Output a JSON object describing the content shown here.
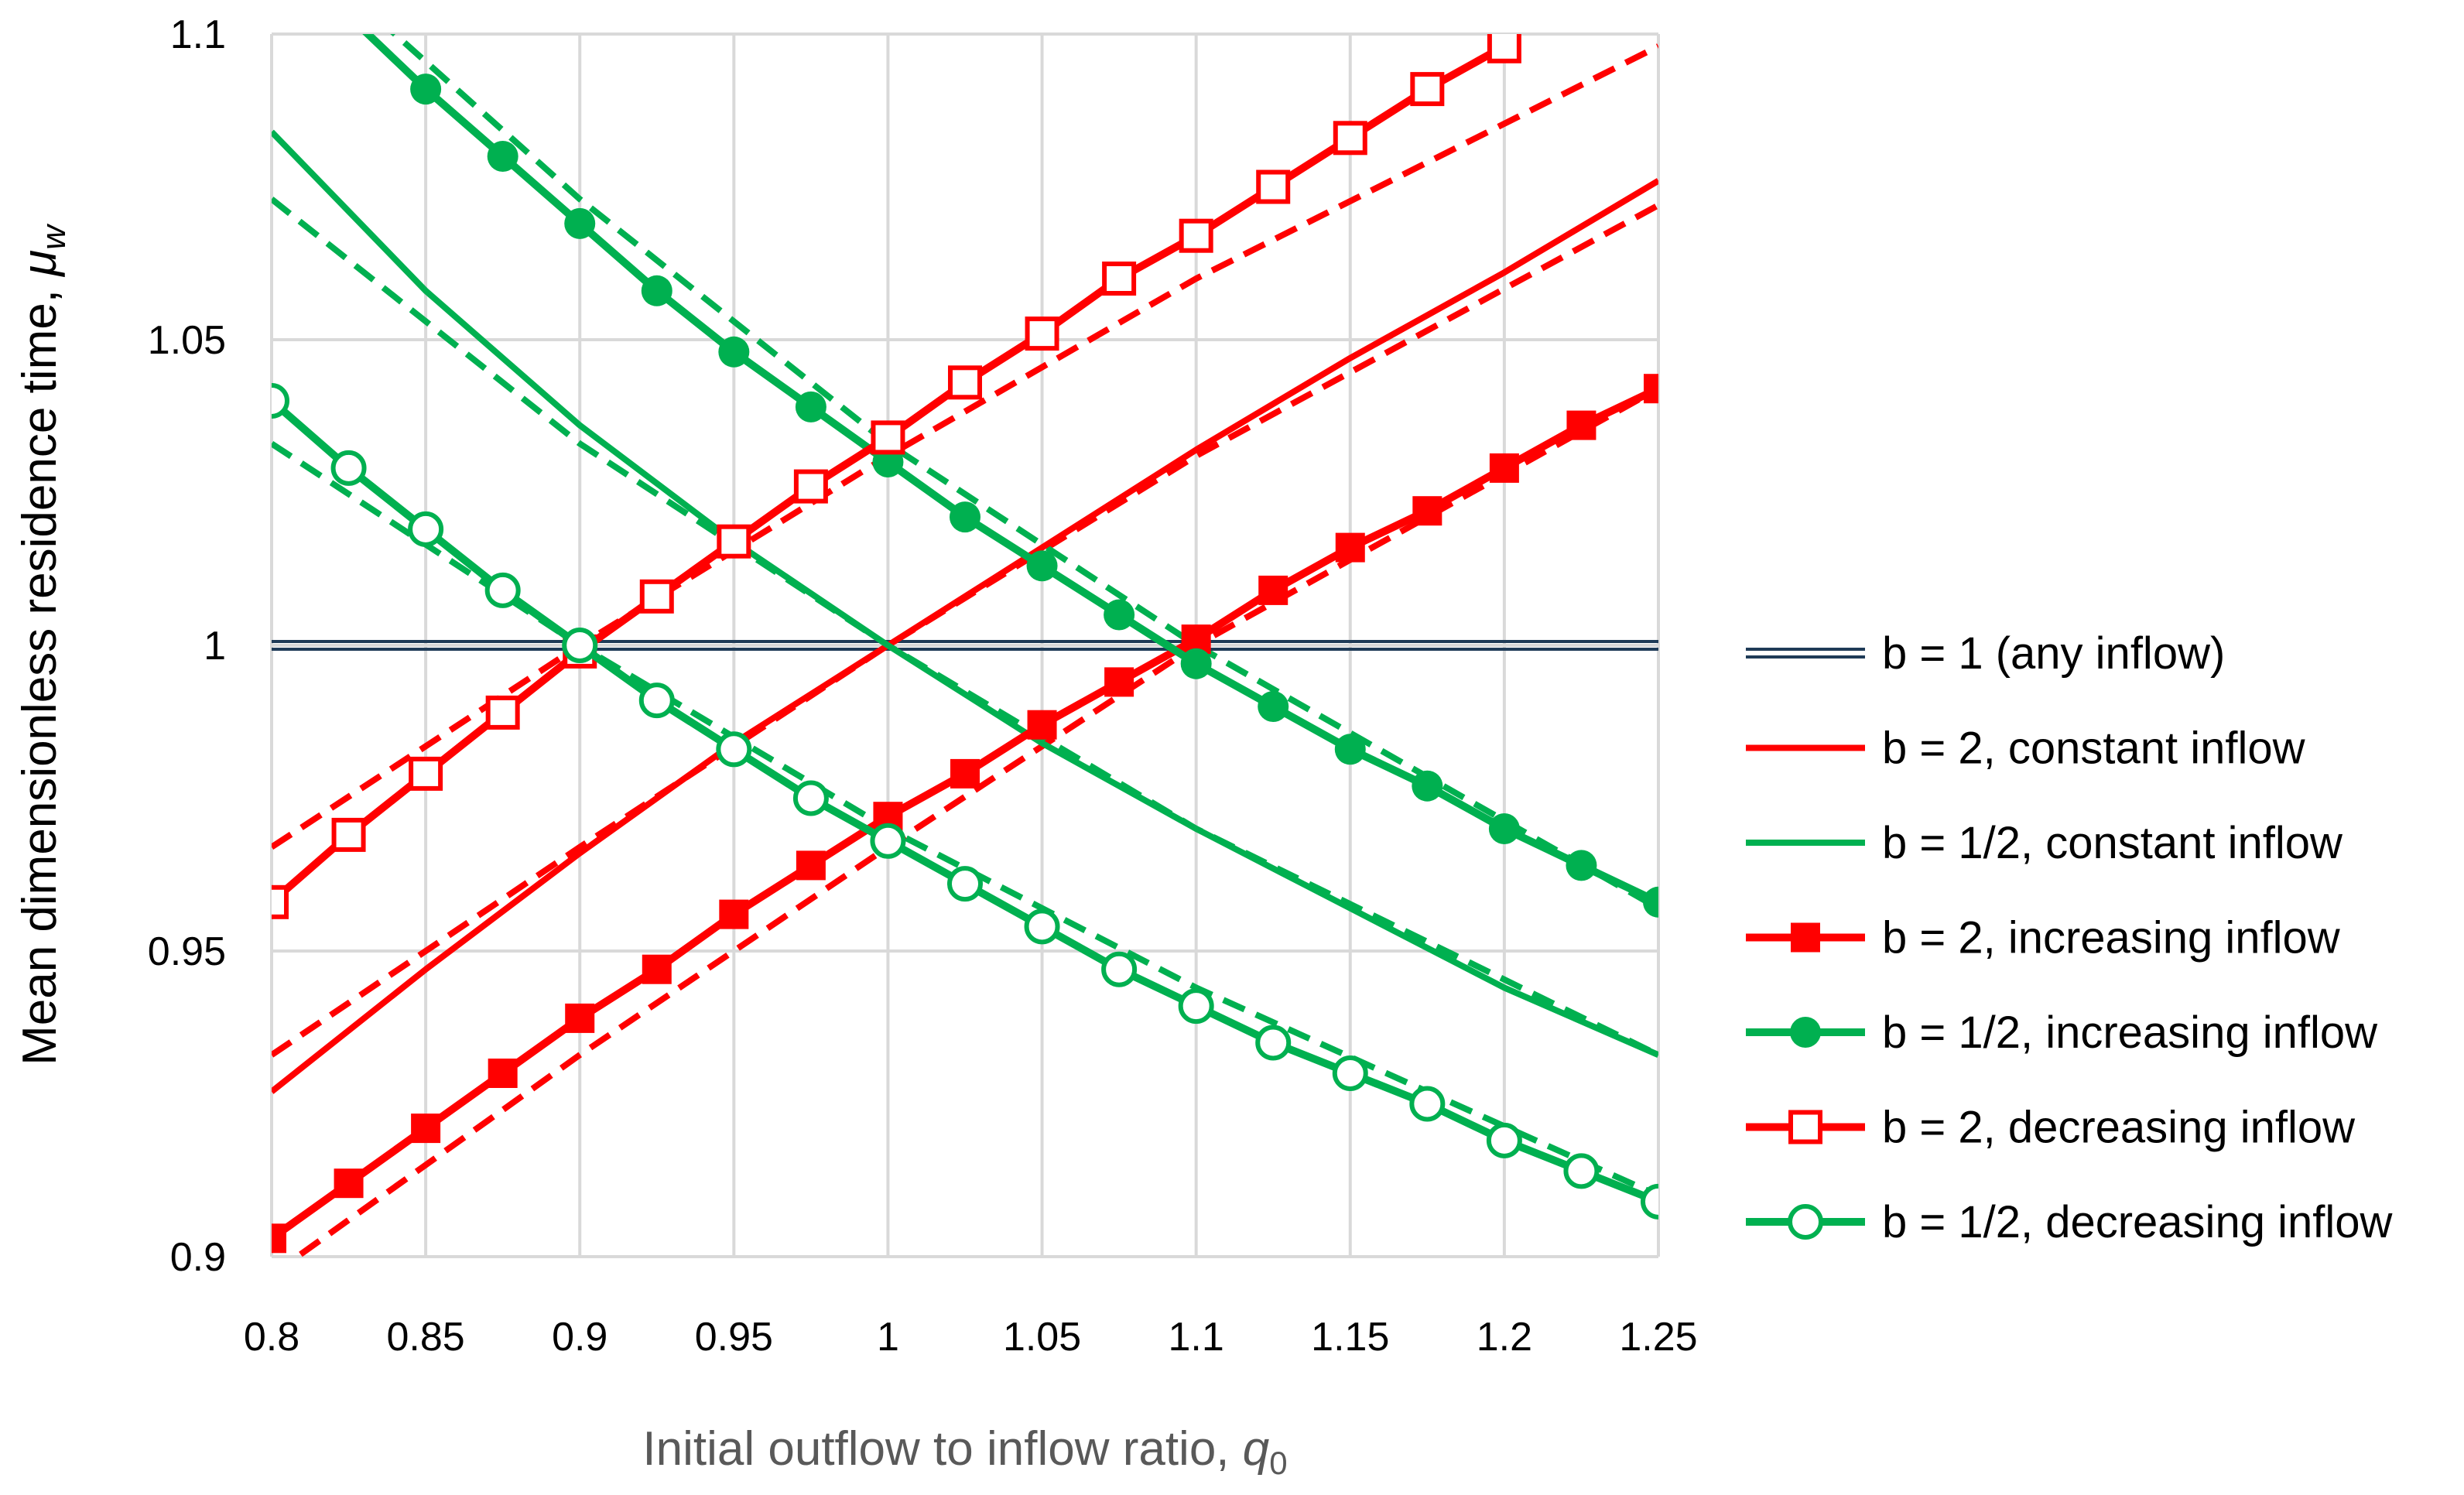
{
  "chart_data": {
    "type": "line",
    "xlabel": "Initial outflow to inflow ratio, ",
    "xlabel_var": "q",
    "xlabel_sub": "0",
    "ylabel": "Mean dimensionless residence time, ",
    "ylabel_var": "μ",
    "ylabel_sub": "w",
    "xlim": [
      0.8,
      1.25
    ],
    "ylim": [
      0.9,
      1.1
    ],
    "x_ticks": [
      "0.8",
      "0.85",
      "0.9",
      "0.95",
      "1",
      "1.05",
      "1.1",
      "1.15",
      "1.2",
      "1.25"
    ],
    "y_ticks": [
      "0.9",
      "0.95",
      "1",
      "1.05",
      "1.1"
    ],
    "grid": true,
    "legend_position": "right",
    "series": [
      {
        "name": "b = 1 (any inflow)",
        "color": "#1F3B57",
        "style": "double",
        "marker": "none",
        "x": [
          0.8,
          1.25
        ],
        "y": [
          1.0,
          1.0
        ]
      },
      {
        "name": "b = 2, constant inflow",
        "color": "#FF0000",
        "style": "solid",
        "marker": "none",
        "x": [
          0.8,
          0.85,
          0.9,
          0.95,
          1.0,
          1.05,
          1.1,
          1.15,
          1.2,
          1.25
        ],
        "y": [
          0.927,
          0.947,
          0.966,
          0.984,
          1.0,
          1.016,
          1.032,
          1.047,
          1.061,
          1.076
        ]
      },
      {
        "name": "b = 1/2, constant inflow",
        "color": "#00B050",
        "style": "solid",
        "marker": "none",
        "x": [
          0.8,
          0.85,
          0.9,
          0.95,
          1.0,
          1.05,
          1.1,
          1.15,
          1.2,
          1.25
        ],
        "y": [
          1.084,
          1.058,
          1.036,
          1.017,
          1.0,
          0.984,
          0.97,
          0.957,
          0.944,
          0.933
        ]
      },
      {
        "name": "b = 2, increasing inflow",
        "color": "#FF0000",
        "style": "solid",
        "marker": "filled-square",
        "x": [
          0.8,
          0.825,
          0.85,
          0.875,
          0.9,
          0.925,
          0.95,
          0.975,
          1.0,
          1.025,
          1.05,
          1.075,
          1.1,
          1.125,
          1.15,
          1.175,
          1.2,
          1.225,
          1.25
        ],
        "y": [
          0.903,
          0.912,
          0.921,
          0.93,
          0.939,
          0.947,
          0.956,
          0.964,
          0.972,
          0.979,
          0.987,
          0.994,
          1.001,
          1.009,
          1.016,
          1.022,
          1.029,
          1.036,
          1.042
        ]
      },
      {
        "name": "b = 1/2, increasing inflow",
        "color": "#00B050",
        "style": "solid",
        "marker": "filled-circle",
        "x": [
          0.8,
          0.825,
          0.85,
          0.875,
          0.9,
          0.925,
          0.95,
          0.975,
          1.0,
          1.025,
          1.05,
          1.075,
          1.1,
          1.125,
          1.15,
          1.175,
          1.2,
          1.225,
          1.25
        ],
        "y": [
          1.117,
          1.103,
          1.091,
          1.08,
          1.069,
          1.058,
          1.048,
          1.039,
          1.03,
          1.021,
          1.013,
          1.005,
          0.997,
          0.99,
          0.983,
          0.977,
          0.97,
          0.964,
          0.958
        ]
      },
      {
        "name": "b = 2, decreasing inflow",
        "color": "#FF0000",
        "style": "solid",
        "marker": "open-square",
        "x": [
          0.8,
          0.825,
          0.85,
          0.875,
          0.9,
          0.925,
          0.95,
          0.975,
          1.0,
          1.025,
          1.05,
          1.075,
          1.1,
          1.125,
          1.15,
          1.175,
          1.2
        ],
        "y": [
          0.958,
          0.969,
          0.979,
          0.989,
          0.999,
          1.008,
          1.017,
          1.026,
          1.034,
          1.043,
          1.051,
          1.06,
          1.067,
          1.075,
          1.083,
          1.091,
          1.098
        ]
      },
      {
        "name": "b = 1/2, decreasing inflow",
        "color": "#00B050",
        "style": "solid",
        "marker": "open-circle",
        "x": [
          0.8,
          0.825,
          0.85,
          0.875,
          0.9,
          0.925,
          0.95,
          0.975,
          1.0,
          1.025,
          1.05,
          1.075,
          1.1,
          1.125,
          1.15,
          1.175,
          1.2,
          1.225,
          1.25
        ],
        "y": [
          1.04,
          1.029,
          1.019,
          1.009,
          1.0,
          0.991,
          0.983,
          0.975,
          0.968,
          0.961,
          0.954,
          0.947,
          0.941,
          0.935,
          0.93,
          0.925,
          0.919,
          0.914,
          0.909
        ]
      }
    ],
    "approximations": [
      {
        "color": "#FF0000",
        "style": "dashed",
        "x": [
          0.8,
          0.9,
          1.0,
          1.1,
          1.25
        ],
        "y": [
          0.933,
          0.967,
          1.0,
          1.031,
          1.072
        ]
      },
      {
        "color": "#00B050",
        "style": "dashed",
        "x": [
          0.8,
          0.9,
          1.0,
          1.1,
          1.25
        ],
        "y": [
          1.073,
          1.033,
          1.0,
          0.97,
          0.933
        ]
      },
      {
        "color": "#FF0000",
        "style": "dashed",
        "x": [
          0.8,
          0.9,
          1.0,
          1.1,
          1.25
        ],
        "y": [
          0.897,
          0.933,
          0.967,
          1.0,
          1.042
        ]
      },
      {
        "color": "#00B050",
        "style": "dashed",
        "x": [
          0.8,
          0.9,
          1.0,
          1.1,
          1.25
        ],
        "y": [
          1.118,
          1.073,
          1.033,
          1.0,
          0.957
        ]
      },
      {
        "color": "#FF0000",
        "style": "dashed",
        "x": [
          0.8,
          0.9,
          1.0,
          1.1,
          1.25
        ],
        "y": [
          0.967,
          1.0,
          1.031,
          1.06,
          1.098
        ]
      },
      {
        "color": "#00B050",
        "style": "dashed",
        "x": [
          0.8,
          0.9,
          1.0,
          1.1,
          1.25
        ],
        "y": [
          1.033,
          1.0,
          0.97,
          0.944,
          0.91
        ]
      }
    ]
  }
}
